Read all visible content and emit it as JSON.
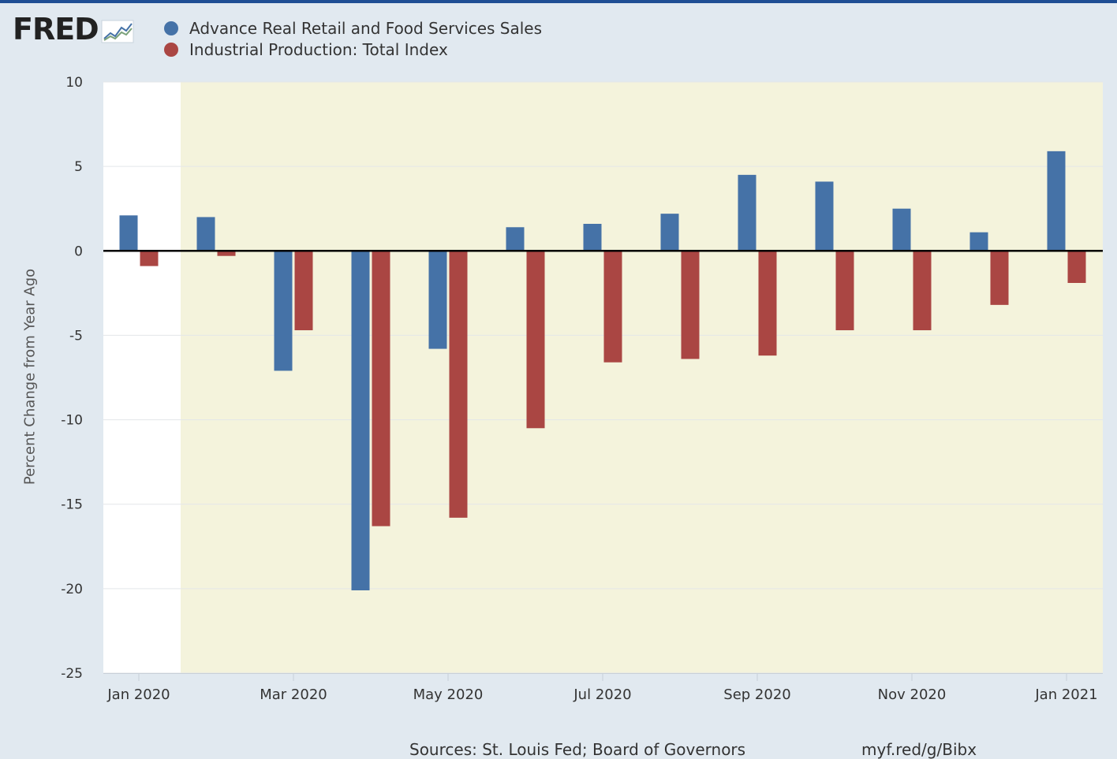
{
  "header": {
    "logo_text": "FRED",
    "logo_icon": "line-graph-icon"
  },
  "colors": {
    "retail": "#4572a7",
    "industrial": "#aa4643",
    "recession_shade": "#f4f3dc",
    "plot_bg": "#ffffff",
    "page_bg": "#e1e9f0",
    "brand_stripe": "#1f4e94"
  },
  "footer": {
    "source": "Sources: St. Louis Fed; Board of Governors",
    "url": "myf.red/g/Bibx"
  },
  "chart_data": {
    "type": "bar",
    "title": "",
    "xlabel": "",
    "ylabel": "Percent Change from Year Ago",
    "ylim": [
      -25,
      10
    ],
    "yticks": [
      10,
      5,
      0,
      -5,
      -10,
      -15,
      -20,
      -25
    ],
    "grid": true,
    "legend_position": "top-left",
    "categories": [
      "Jan 2020",
      "Feb 2020",
      "Mar 2020",
      "Apr 2020",
      "May 2020",
      "Jun 2020",
      "Jul 2020",
      "Aug 2020",
      "Sep 2020",
      "Oct 2020",
      "Nov 2020",
      "Dec 2020",
      "Jan 2021"
    ],
    "xtick_labels": [
      "Jan 2020",
      "Mar 2020",
      "May 2020",
      "Jul 2020",
      "Sep 2020",
      "Nov 2020",
      "Jan 2021"
    ],
    "recession_shading": {
      "start": "Feb 2020",
      "end": "Jan 2021"
    },
    "series": [
      {
        "name": "Advance Real Retail and Food Services Sales",
        "color": "#4572a7",
        "values": [
          2.1,
          2.0,
          -7.1,
          -20.1,
          -5.8,
          1.4,
          1.6,
          2.2,
          4.5,
          4.1,
          2.5,
          1.1,
          5.9
        ]
      },
      {
        "name": "Industrial Production: Total Index",
        "color": "#aa4643",
        "values": [
          -0.9,
          -0.3,
          -4.7,
          -16.3,
          -15.8,
          -10.5,
          -6.6,
          -6.4,
          -6.2,
          -4.7,
          -4.7,
          -3.2,
          -1.9
        ]
      }
    ]
  }
}
